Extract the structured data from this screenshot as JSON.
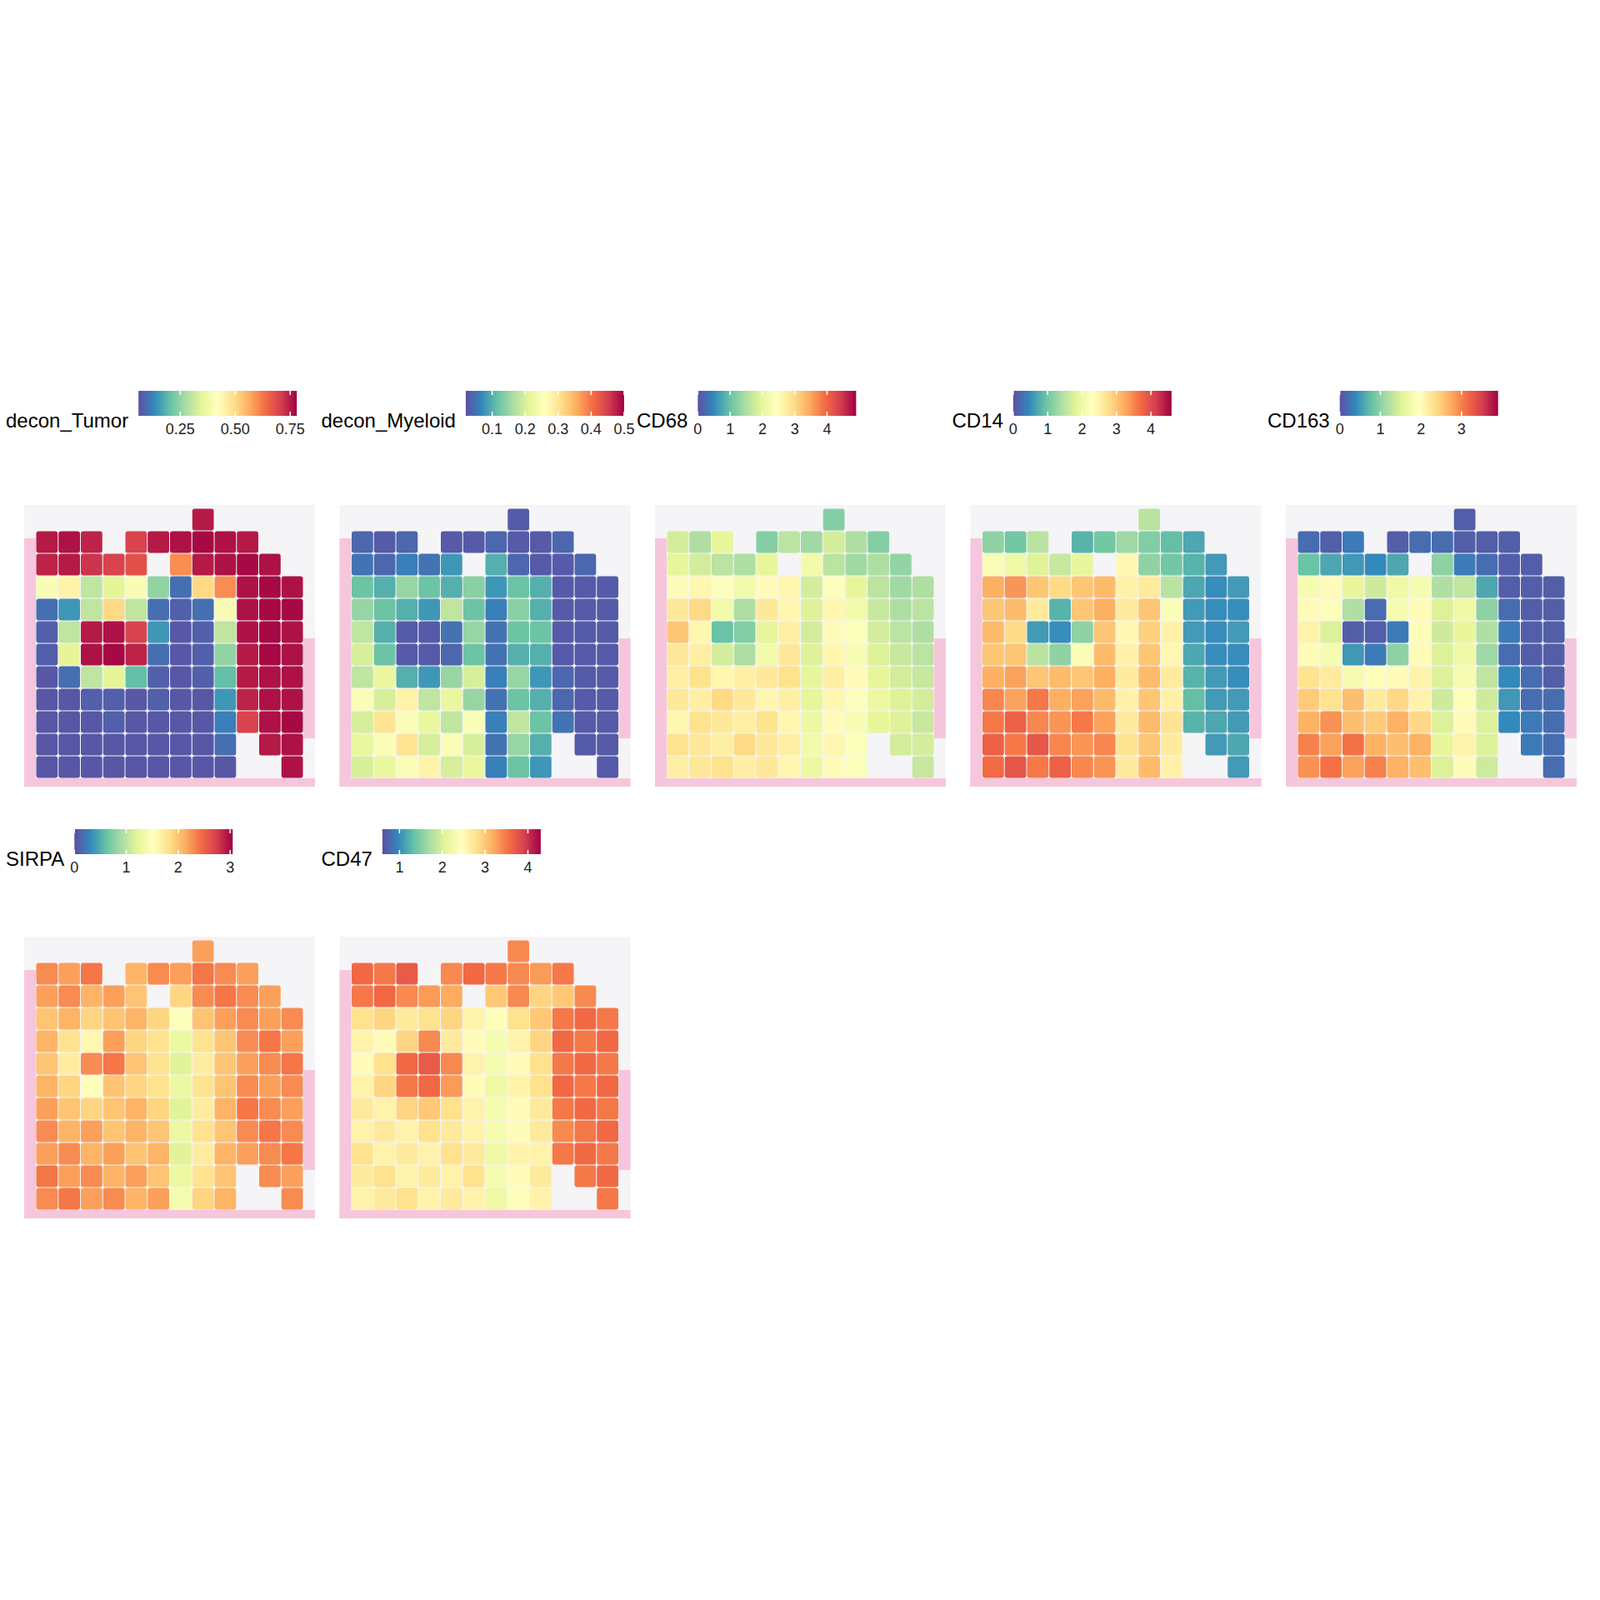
{
  "chart_data": [
    {
      "type": "heatmap",
      "title": "decon_Tumor",
      "color_range": [
        0.06,
        0.78
      ],
      "color_ticks": [
        0.25,
        {
          "value": 0.5,
          "label": "0.50"
        },
        0.75
      ],
      "cells": [
        [
          null,
          null,
          null,
          null,
          null,
          null,
          null,
          0.75,
          null,
          null,
          null,
          null
        ],
        [
          0.75,
          0.76,
          0.74,
          null,
          0.7,
          0.75,
          0.76,
          0.77,
          0.76,
          0.75,
          null,
          null
        ],
        [
          0.74,
          0.75,
          0.72,
          0.7,
          0.68,
          null,
          0.6,
          0.75,
          0.76,
          0.77,
          0.76,
          null
        ],
        [
          0.4,
          0.45,
          0.3,
          0.35,
          0.4,
          0.25,
          0.1,
          0.5,
          0.6,
          0.76,
          0.77,
          0.76
        ],
        [
          0.1,
          0.15,
          0.3,
          0.5,
          0.3,
          0.1,
          0.08,
          0.1,
          0.4,
          0.76,
          0.77,
          0.77
        ],
        [
          0.08,
          0.3,
          0.75,
          0.76,
          0.7,
          0.15,
          0.07,
          0.08,
          0.3,
          0.76,
          0.77,
          0.76
        ],
        [
          0.08,
          0.35,
          0.76,
          0.77,
          0.74,
          0.1,
          0.07,
          0.08,
          0.25,
          0.75,
          0.77,
          0.76
        ],
        [
          0.07,
          0.1,
          0.3,
          0.35,
          0.2,
          0.08,
          0.07,
          0.08,
          0.2,
          0.75,
          0.76,
          0.76
        ],
        [
          0.07,
          0.07,
          0.08,
          0.08,
          0.07,
          0.08,
          0.07,
          0.07,
          0.15,
          0.74,
          0.76,
          0.76
        ],
        [
          0.07,
          0.07,
          0.07,
          0.08,
          0.07,
          0.07,
          0.07,
          0.07,
          0.12,
          0.7,
          0.76,
          0.77
        ],
        [
          0.07,
          0.07,
          0.07,
          0.07,
          0.07,
          0.07,
          0.07,
          0.07,
          0.1,
          null,
          0.75,
          0.76
        ],
        [
          0.07,
          0.07,
          0.07,
          0.07,
          0.07,
          0.07,
          0.07,
          0.07,
          0.07,
          null,
          null,
          0.76
        ]
      ]
    },
    {
      "type": "heatmap",
      "title": "decon_Myeloid",
      "color_range": [
        0.02,
        0.5
      ],
      "color_ticks": [
        0.1,
        0.2,
        0.3,
        0.4,
        0.5
      ],
      "cells": [
        [
          null,
          null,
          null,
          null,
          null,
          null,
          null,
          0.03,
          null,
          null,
          null,
          null
        ],
        [
          0.04,
          0.03,
          0.04,
          null,
          0.03,
          0.03,
          0.04,
          0.03,
          0.03,
          0.04,
          null,
          null
        ],
        [
          0.05,
          0.04,
          0.06,
          0.05,
          0.08,
          null,
          0.1,
          0.04,
          0.03,
          0.03,
          0.04,
          null
        ],
        [
          0.12,
          0.1,
          0.15,
          0.12,
          0.1,
          0.14,
          0.08,
          0.12,
          0.1,
          0.03,
          0.03,
          0.03
        ],
        [
          0.15,
          0.12,
          0.1,
          0.08,
          0.18,
          0.12,
          0.06,
          0.14,
          0.1,
          0.03,
          0.03,
          0.03
        ],
        [
          0.18,
          0.1,
          0.03,
          0.03,
          0.05,
          0.15,
          0.05,
          0.12,
          0.12,
          0.03,
          0.03,
          0.03
        ],
        [
          0.2,
          0.12,
          0.03,
          0.03,
          0.04,
          0.12,
          0.05,
          0.1,
          0.1,
          0.03,
          0.03,
          0.03
        ],
        [
          0.18,
          0.22,
          0.1,
          0.08,
          0.15,
          0.2,
          0.06,
          0.15,
          0.08,
          0.04,
          0.03,
          0.03
        ],
        [
          0.25,
          0.2,
          0.28,
          0.18,
          0.22,
          0.15,
          0.05,
          0.12,
          0.1,
          0.04,
          0.03,
          0.03
        ],
        [
          0.2,
          0.3,
          0.25,
          0.22,
          0.18,
          0.25,
          0.06,
          0.18,
          0.12,
          0.05,
          0.03,
          0.03
        ],
        [
          0.22,
          0.25,
          0.3,
          0.2,
          0.25,
          0.2,
          0.05,
          0.15,
          0.1,
          null,
          0.03,
          0.03
        ],
        [
          0.2,
          0.22,
          0.25,
          0.28,
          0.2,
          0.22,
          0.06,
          0.12,
          0.08,
          null,
          null,
          0.03
        ]
      ]
    },
    {
      "type": "heatmap",
      "title": "CD68",
      "color_range": [
        0,
        4.9
      ],
      "color_ticks": [
        0,
        1,
        2,
        3,
        4
      ],
      "cells": [
        [
          null,
          null,
          null,
          null,
          null,
          null,
          null,
          1.2,
          null,
          null,
          null,
          null
        ],
        [
          1.8,
          1.5,
          2.0,
          null,
          1.2,
          1.6,
          1.4,
          1.8,
          1.5,
          1.2,
          null,
          null
        ],
        [
          2.0,
          1.8,
          1.6,
          1.5,
          2.0,
          null,
          2.2,
          1.6,
          1.4,
          1.5,
          1.3,
          null
        ],
        [
          2.5,
          2.6,
          2.4,
          2.2,
          2.5,
          2.6,
          1.8,
          2.4,
          2.0,
          1.6,
          1.4,
          1.5
        ],
        [
          2.8,
          3.0,
          2.2,
          1.5,
          2.8,
          2.6,
          1.9,
          2.6,
          2.2,
          1.7,
          1.5,
          1.6
        ],
        [
          3.2,
          2.6,
          1.0,
          1.2,
          2.0,
          2.7,
          1.8,
          2.5,
          2.4,
          1.8,
          1.6,
          1.5
        ],
        [
          2.8,
          2.7,
          1.8,
          1.5,
          2.2,
          2.8,
          1.9,
          2.6,
          2.3,
          1.9,
          1.7,
          1.6
        ],
        [
          2.7,
          2.9,
          2.6,
          2.7,
          2.8,
          2.9,
          2.0,
          2.7,
          2.5,
          2.0,
          1.8,
          1.7
        ],
        [
          2.8,
          2.7,
          3.0,
          2.8,
          2.6,
          2.7,
          2.0,
          2.6,
          2.4,
          2.1,
          1.9,
          1.8
        ],
        [
          2.6,
          2.9,
          2.8,
          2.7,
          2.9,
          2.6,
          2.1,
          2.5,
          2.3,
          2.0,
          1.9,
          1.7
        ],
        [
          2.9,
          2.8,
          2.7,
          3.0,
          2.8,
          2.7,
          2.2,
          2.6,
          2.4,
          null,
          1.8,
          1.8
        ],
        [
          2.7,
          2.8,
          2.9,
          2.7,
          2.8,
          2.6,
          2.1,
          2.5,
          2.4,
          null,
          null,
          1.7
        ]
      ]
    },
    {
      "type": "heatmap",
      "title": "CD14",
      "color_range": [
        0,
        4.6
      ],
      "color_ticks": [
        0,
        1,
        2,
        3,
        4
      ],
      "cells": [
        [
          null,
          null,
          null,
          null,
          null,
          null,
          null,
          1.5,
          null,
          null,
          null,
          null
        ],
        [
          1.2,
          1.0,
          1.5,
          null,
          0.8,
          1.0,
          1.3,
          1.1,
          0.9,
          0.7,
          null,
          null
        ],
        [
          2.2,
          2.0,
          1.8,
          1.6,
          1.9,
          null,
          2.4,
          1.2,
          1.0,
          0.8,
          0.6,
          null
        ],
        [
          3.2,
          3.4,
          3.0,
          2.8,
          3.0,
          3.1,
          2.5,
          2.6,
          1.5,
          0.7,
          0.5,
          0.6
        ],
        [
          3.0,
          3.1,
          2.6,
          0.8,
          3.0,
          3.2,
          2.6,
          3.0,
          2.2,
          0.6,
          0.5,
          0.5
        ],
        [
          3.1,
          2.8,
          0.6,
          0.5,
          1.2,
          3.0,
          2.4,
          2.9,
          2.5,
          0.6,
          0.5,
          0.6
        ],
        [
          3.0,
          3.0,
          1.5,
          1.2,
          2.2,
          3.1,
          2.5,
          3.0,
          2.4,
          0.7,
          0.5,
          0.5
        ],
        [
          3.2,
          3.3,
          3.0,
          3.1,
          3.0,
          3.2,
          2.6,
          3.1,
          2.6,
          0.8,
          0.6,
          0.5
        ],
        [
          3.5,
          3.3,
          3.6,
          3.2,
          3.3,
          3.1,
          2.5,
          3.0,
          2.5,
          0.9,
          0.6,
          0.6
        ],
        [
          3.6,
          3.8,
          3.5,
          3.4,
          3.6,
          3.3,
          2.6,
          3.1,
          2.7,
          0.8,
          0.7,
          0.6
        ],
        [
          3.8,
          3.6,
          3.9,
          3.5,
          3.4,
          3.5,
          2.7,
          3.0,
          2.6,
          null,
          0.6,
          0.7
        ],
        [
          3.7,
          3.9,
          3.6,
          3.8,
          3.5,
          3.4,
          2.6,
          3.1,
          2.5,
          null,
          null,
          0.6
        ]
      ]
    },
    {
      "type": "heatmap",
      "title": "CD163",
      "color_range": [
        0,
        3.9
      ],
      "color_ticks": [
        0,
        1,
        2,
        3
      ],
      "cells": [
        [
          null,
          null,
          null,
          null,
          null,
          null,
          null,
          0.1,
          null,
          null,
          null,
          null
        ],
        [
          0.2,
          0.1,
          0.3,
          null,
          0.1,
          0.2,
          0.2,
          0.1,
          0.1,
          0.1,
          null,
          null
        ],
        [
          0.8,
          0.6,
          0.5,
          0.4,
          0.6,
          null,
          1.0,
          0.3,
          0.2,
          0.1,
          0.1,
          null
        ],
        [
          1.8,
          2.0,
          1.6,
          1.4,
          1.7,
          1.8,
          1.2,
          1.3,
          0.6,
          0.1,
          0.1,
          0.1
        ],
        [
          2.0,
          1.9,
          1.2,
          0.2,
          1.8,
          2.0,
          1.5,
          1.7,
          1.0,
          0.2,
          0.1,
          0.1
        ],
        [
          2.1,
          1.5,
          0.1,
          0.1,
          0.3,
          1.9,
          1.4,
          1.6,
          1.2,
          0.3,
          0.1,
          0.1
        ],
        [
          2.0,
          1.8,
          0.5,
          0.3,
          1.0,
          2.0,
          1.5,
          1.7,
          1.1,
          0.2,
          0.1,
          0.1
        ],
        [
          2.3,
          2.2,
          1.8,
          1.9,
          2.0,
          2.1,
          1.5,
          1.8,
          1.3,
          0.4,
          0.2,
          0.1
        ],
        [
          2.5,
          2.3,
          2.6,
          2.2,
          2.4,
          2.1,
          1.4,
          1.9,
          1.4,
          0.5,
          0.2,
          0.2
        ],
        [
          2.7,
          2.9,
          2.6,
          2.5,
          2.7,
          2.4,
          1.5,
          2.0,
          1.5,
          0.4,
          0.3,
          0.2
        ],
        [
          3.0,
          2.8,
          3.1,
          2.7,
          2.6,
          2.7,
          1.6,
          2.1,
          1.5,
          null,
          0.3,
          0.2
        ],
        [
          2.9,
          3.1,
          2.8,
          3.0,
          2.7,
          2.6,
          1.5,
          2.0,
          1.4,
          null,
          null,
          0.2
        ]
      ]
    },
    {
      "type": "heatmap",
      "title": "SIRPA",
      "color_range": [
        0,
        3.05
      ],
      "color_ticks": [
        0,
        1,
        2,
        3
      ],
      "cells": [
        [
          null,
          null,
          null,
          null,
          null,
          null,
          null,
          2.2,
          null,
          null,
          null,
          null
        ],
        [
          2.3,
          2.2,
          2.4,
          null,
          2.1,
          2.3,
          2.2,
          2.4,
          2.3,
          2.2,
          null,
          null
        ],
        [
          2.2,
          2.3,
          2.1,
          2.2,
          2.0,
          null,
          1.9,
          2.3,
          2.4,
          2.3,
          2.2,
          null
        ],
        [
          2.0,
          2.1,
          1.9,
          2.0,
          2.1,
          1.9,
          1.5,
          2.0,
          2.2,
          2.3,
          2.2,
          2.3
        ],
        [
          2.1,
          1.8,
          1.6,
          2.2,
          1.9,
          1.8,
          1.3,
          1.8,
          2.0,
          2.3,
          2.4,
          2.2
        ],
        [
          2.0,
          1.7,
          2.3,
          2.4,
          2.0,
          1.8,
          1.2,
          1.7,
          2.0,
          2.2,
          2.3,
          2.4
        ],
        [
          2.1,
          1.9,
          1.5,
          2.0,
          1.9,
          1.8,
          1.3,
          1.8,
          2.0,
          2.3,
          2.2,
          2.3
        ],
        [
          2.2,
          2.0,
          1.9,
          2.0,
          2.1,
          1.9,
          1.2,
          1.7,
          2.1,
          2.4,
          2.3,
          2.2
        ],
        [
          2.3,
          2.1,
          2.2,
          2.0,
          2.1,
          2.0,
          1.3,
          1.8,
          2.0,
          2.3,
          2.4,
          2.3
        ],
        [
          2.2,
          2.3,
          2.1,
          2.2,
          2.0,
          2.1,
          1.2,
          1.7,
          2.1,
          2.2,
          2.3,
          2.4
        ],
        [
          2.4,
          2.2,
          2.3,
          2.1,
          2.2,
          2.0,
          1.3,
          1.8,
          2.0,
          null,
          2.3,
          2.2
        ],
        [
          2.3,
          2.4,
          2.2,
          2.3,
          2.1,
          2.2,
          1.4,
          1.9,
          2.1,
          null,
          null,
          2.3
        ]
      ]
    },
    {
      "type": "heatmap",
      "title": "CD47",
      "color_range": [
        0.6,
        4.3
      ],
      "color_ticks": [
        1,
        2,
        3,
        4
      ],
      "cells": [
        [
          null,
          null,
          null,
          null,
          null,
          null,
          null,
          3.4,
          null,
          null,
          null,
          null
        ],
        [
          3.6,
          3.5,
          3.7,
          null,
          3.4,
          3.6,
          3.5,
          3.4,
          3.3,
          3.5,
          null,
          null
        ],
        [
          3.5,
          3.6,
          3.4,
          3.3,
          3.2,
          null,
          3.0,
          3.4,
          2.9,
          3.0,
          3.4,
          null
        ],
        [
          2.8,
          2.9,
          2.7,
          2.8,
          2.9,
          2.6,
          2.4,
          2.8,
          3.0,
          3.5,
          3.6,
          3.5
        ],
        [
          2.6,
          2.5,
          2.9,
          3.4,
          2.7,
          2.5,
          2.3,
          2.6,
          2.9,
          3.6,
          3.5,
          3.6
        ],
        [
          2.5,
          2.8,
          3.6,
          3.7,
          3.4,
          2.6,
          2.3,
          2.5,
          2.8,
          3.5,
          3.6,
          3.5
        ],
        [
          2.6,
          2.9,
          3.5,
          3.6,
          3.3,
          2.5,
          2.2,
          2.6,
          2.8,
          3.6,
          3.5,
          3.6
        ],
        [
          2.7,
          2.6,
          2.9,
          3.0,
          2.8,
          2.6,
          2.3,
          2.5,
          2.7,
          3.5,
          3.6,
          3.5
        ],
        [
          2.6,
          2.7,
          2.6,
          2.8,
          2.7,
          2.6,
          2.3,
          2.5,
          2.7,
          3.4,
          3.5,
          3.6
        ],
        [
          2.8,
          2.6,
          2.7,
          2.6,
          2.8,
          2.7,
          2.2,
          2.6,
          2.6,
          3.5,
          3.6,
          3.5
        ],
        [
          2.7,
          2.8,
          2.6,
          2.7,
          2.6,
          2.8,
          2.3,
          2.5,
          2.7,
          null,
          3.5,
          3.6
        ],
        [
          2.6,
          2.7,
          2.8,
          2.6,
          2.7,
          2.6,
          2.2,
          2.4,
          2.6,
          null,
          null,
          3.5
        ]
      ]
    }
  ]
}
